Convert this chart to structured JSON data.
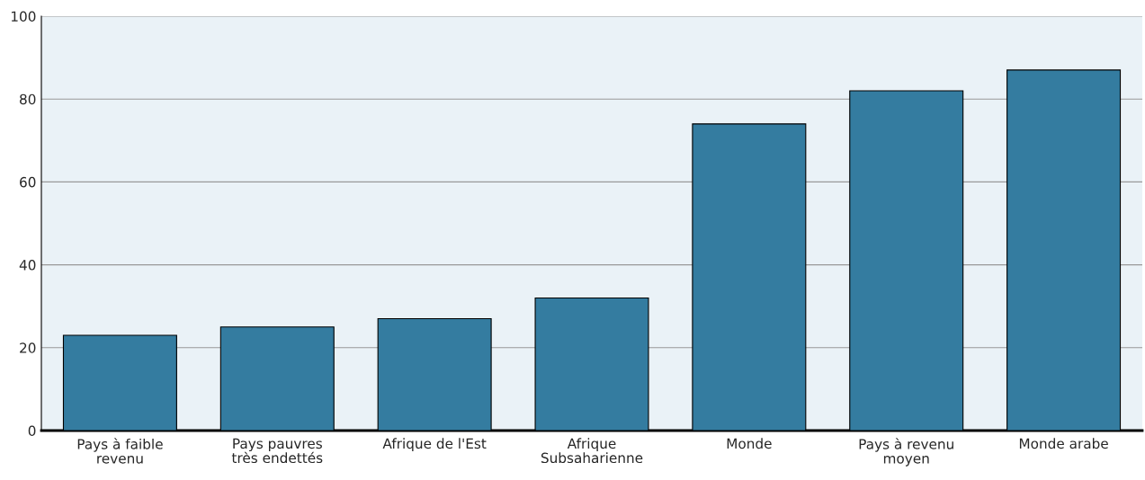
{
  "chart_data": {
    "type": "bar",
    "categories": [
      "Pays à faible\nrevenu",
      "Pays pauvres\ntrès endettés",
      "Afrique de l'Est",
      "Afrique\nSubsaharienne",
      "Monde",
      "Pays à revenu\nmoyen",
      "Monde arabe"
    ],
    "values": [
      23,
      25,
      27,
      32,
      74,
      82,
      87
    ],
    "color": "#347ca0",
    "ylim": [
      0,
      100
    ],
    "yticks": [
      0,
      20,
      40,
      60,
      80,
      100
    ],
    "grid": "y"
  }
}
